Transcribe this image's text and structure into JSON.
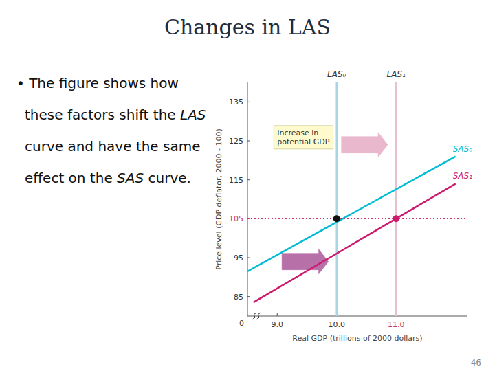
{
  "chart_data": {
    "type": "line",
    "title": "Changes in LAS",
    "xlabel": "Real GDP (trillions of 2000 dollars)",
    "ylabel": "Price level (GDP deflator, 2000 - 100)",
    "xlim": [
      8.5,
      12.2
    ],
    "ylim": [
      80,
      140
    ],
    "xticks": [
      {
        "value": 9.0,
        "label": "9.0"
      },
      {
        "value": 10.0,
        "label": "10.0"
      },
      {
        "value": 11.0,
        "label": "11.0",
        "color": "#cc3366"
      }
    ],
    "yticks": [
      85,
      95,
      {
        "value": 105,
        "label": "105",
        "color": "#cc3366"
      },
      115,
      125,
      135
    ],
    "grid": false,
    "series": [
      {
        "name": "LAS₀",
        "type": "vline",
        "color": "#a8d4e8",
        "x": [
          10.0
        ]
      },
      {
        "name": "LAS₁",
        "type": "vline",
        "color": "#e8c0d0",
        "x": [
          11.0
        ]
      },
      {
        "name": "SAS₀",
        "type": "line",
        "color": "#00bcd4",
        "x": [
          8.5,
          12.0
        ],
        "values": [
          91.5,
          121.0
        ]
      },
      {
        "name": "SAS₁",
        "type": "line",
        "color": "#cc1a6e",
        "x": [
          8.6,
          12.0
        ],
        "values": [
          83.5,
          114.0
        ]
      },
      {
        "type": "hline",
        "color": "#cc3366",
        "line_style": "dotted",
        "values": [
          105
        ]
      },
      {
        "type": "scatter",
        "marker": "circle",
        "colors": [
          "#111111",
          "#cc1a6e"
        ],
        "x": [
          10.0,
          11.0
        ],
        "values": [
          105,
          105
        ]
      }
    ],
    "arrows": [
      {
        "x": 10.08,
        "y": 124,
        "dx": 0.78,
        "color": "#e8b0c8"
      },
      {
        "x": 9.08,
        "y": 94,
        "dx": 0.78,
        "color": "#b060a0"
      }
    ],
    "annotations": [
      {
        "text": "Increase in\npotential GDP",
        "x": 9.0,
        "y": 126,
        "box": true,
        "color": "#fffacd"
      },
      {
        "text": "0",
        "x": 8.5,
        "y": 80
      },
      {
        "text": "• The figure shows how these factors shift the LAS curve and have the same effect on the SAS curve."
      },
      {
        "text": "46"
      }
    ]
  }
}
